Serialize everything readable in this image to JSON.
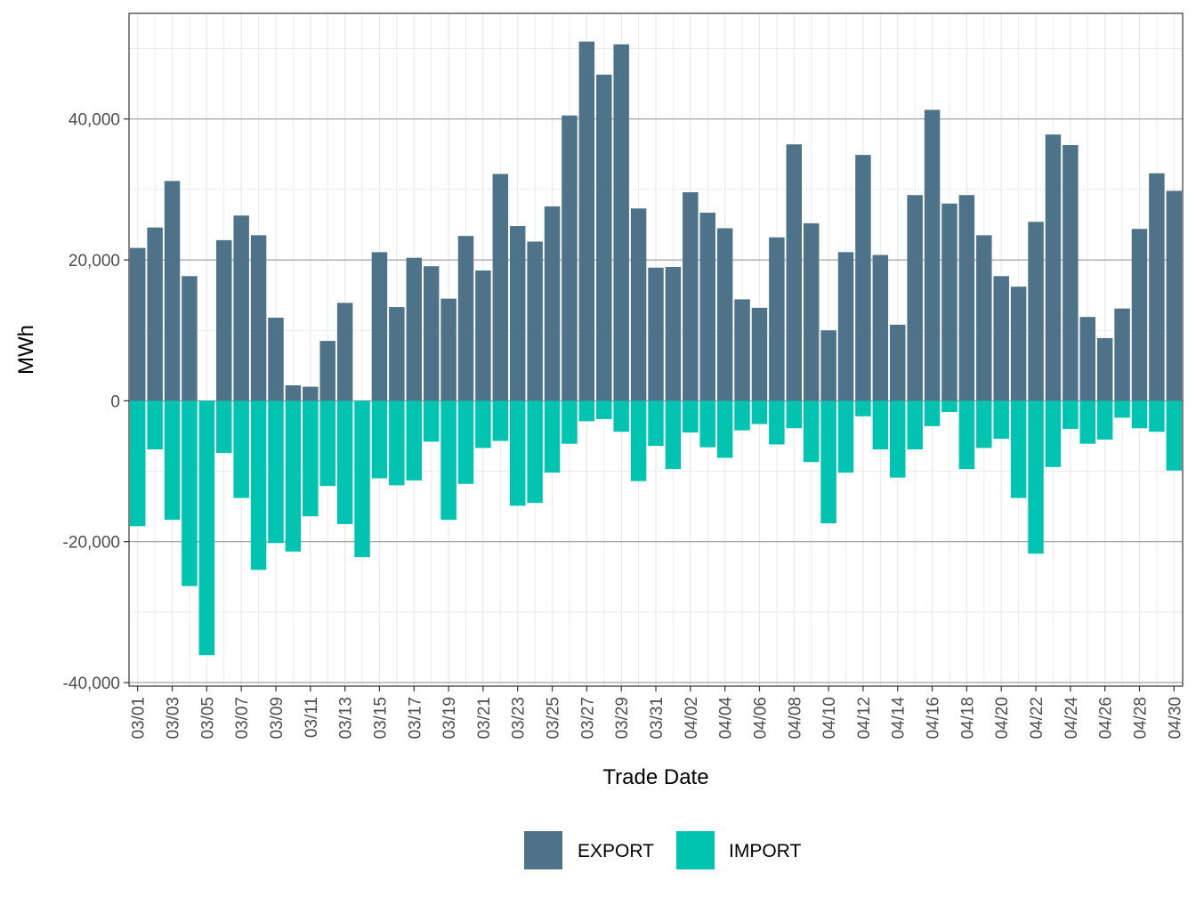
{
  "chart_data": {
    "type": "bar",
    "stacked": "diverging",
    "xlabel": "Trade Date",
    "ylabel": "MWh",
    "ylim": [
      -40500,
      55000
    ],
    "yticks": [
      -40000,
      -20000,
      0,
      20000,
      40000
    ],
    "ytick_labels": [
      "-40,000",
      "-20,000",
      "0",
      "20,000",
      "40,000"
    ],
    "grid": true,
    "legend_position": "bottom",
    "categories": [
      "03/01",
      "03/02",
      "03/03",
      "03/04",
      "03/05",
      "03/06",
      "03/07",
      "03/08",
      "03/09",
      "03/10",
      "03/11",
      "03/12",
      "03/13",
      "03/14",
      "03/15",
      "03/16",
      "03/17",
      "03/18",
      "03/19",
      "03/20",
      "03/21",
      "03/22",
      "03/23",
      "03/24",
      "03/25",
      "03/26",
      "03/27",
      "03/28",
      "03/29",
      "03/30",
      "03/31",
      "04/01",
      "04/02",
      "04/03",
      "04/04",
      "04/05",
      "04/06",
      "04/07",
      "04/08",
      "04/09",
      "04/10",
      "04/11",
      "04/12",
      "04/13",
      "04/14",
      "04/15",
      "04/16",
      "04/17",
      "04/18",
      "04/19",
      "04/20",
      "04/21",
      "04/22",
      "04/23",
      "04/24",
      "04/25",
      "04/26",
      "04/27",
      "04/28",
      "04/29",
      "04/30"
    ],
    "tick_labels": [
      "03/01",
      "03/03",
      "03/05",
      "03/07",
      "03/09",
      "03/11",
      "03/13",
      "03/15",
      "03/17",
      "03/19",
      "03/21",
      "03/23",
      "03/25",
      "03/27",
      "03/29",
      "03/31",
      "04/02",
      "04/04",
      "04/06",
      "04/08",
      "04/10",
      "04/12",
      "04/14",
      "04/16",
      "04/18",
      "04/20",
      "04/22",
      "04/24",
      "04/26",
      "04/28",
      "04/30"
    ],
    "series": [
      {
        "name": "EXPORT",
        "color": "#4e7388",
        "values": [
          21700,
          24600,
          31200,
          17700,
          0,
          22800,
          26300,
          23500,
          11800,
          2200,
          2000,
          8500,
          13900,
          0,
          21100,
          13300,
          20300,
          19100,
          14500,
          23400,
          18500,
          32200,
          24800,
          22600,
          27600,
          40500,
          51000,
          46300,
          50600,
          27300,
          18900,
          19000,
          29600,
          26700,
          24500,
          14400,
          13200,
          23200,
          36400,
          25200,
          10000,
          21100,
          34900,
          20700,
          10800,
          29200,
          41300,
          28000,
          29200,
          23500,
          17700,
          16200,
          25400,
          37800,
          36300,
          11900,
          8900,
          13100,
          24400,
          32300,
          29800
        ]
      },
      {
        "name": "IMPORT",
        "color": "#00c4b0",
        "values": [
          -17800,
          -6900,
          -16900,
          -26300,
          -36100,
          -7400,
          -13800,
          -24000,
          -20200,
          -21400,
          -16400,
          -12100,
          -17500,
          -22200,
          -11000,
          -12000,
          -11300,
          -5800,
          -16900,
          -11800,
          -6700,
          -5700,
          -14900,
          -14500,
          -10200,
          -6100,
          -2900,
          -2600,
          -4400,
          -11400,
          -6400,
          -9700,
          -4500,
          -6600,
          -8100,
          -4200,
          -3300,
          -6200,
          -3900,
          -8700,
          -17400,
          -10200,
          -2200,
          -6900,
          -10900,
          -6900,
          -3600,
          -1600,
          -9700,
          -6700,
          -5400,
          -13800,
          -21700,
          -9400,
          -4000,
          -6100,
          -5500,
          -2400,
          -3900,
          -4400,
          -9900
        ]
      }
    ]
  }
}
